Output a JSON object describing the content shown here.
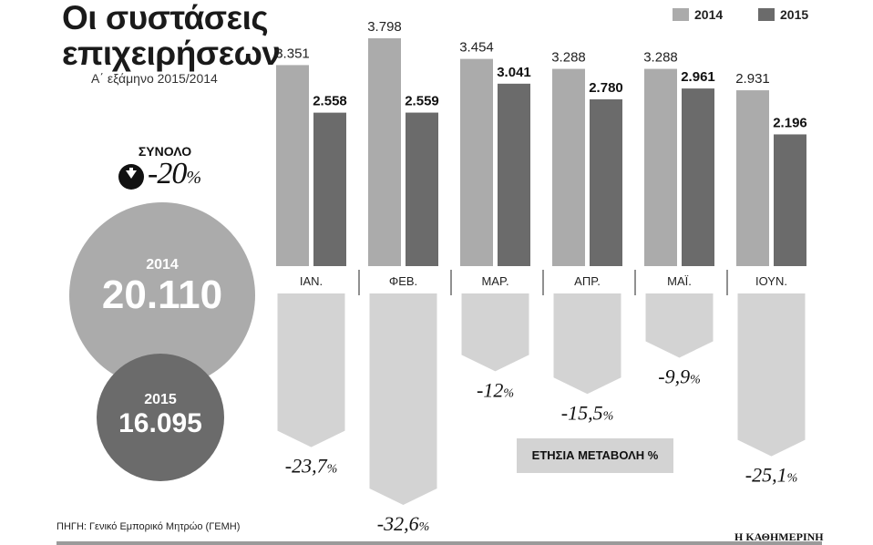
{
  "title": "Οι συστάσεις επιχειρήσεων",
  "subtitle": "Α΄ εξάμηνο 2015/2014",
  "total": {
    "label": "ΣΥΝΟΛΟ",
    "change": "-20",
    "percent_sign": "%",
    "year_a": "2014",
    "value_a": "20.110",
    "year_b": "2015",
    "value_b": "16.095"
  },
  "yoy_box_label": "ΕΤΗΣΙΑ ΜΕΤΑΒΟΛΗ %",
  "source": "ΠΗΓΗ: Γενικό Εμπορικό Μητρώο (ΓΕΜΗ)",
  "brand": "Η ΚΑΘΗΜΕΡΙΝΗ",
  "colors": {
    "series_2014": "#ababab",
    "series_2015": "#6b6b6b",
    "change_arrow": "#d3d3d3",
    "text": "#111111"
  },
  "chart_data": {
    "type": "bar",
    "categories": [
      "ΙΑΝ.",
      "ΦΕΒ.",
      "ΜΑΡ.",
      "ΑΠΡ.",
      "ΜΑΪ.",
      "ΙΟΥΝ."
    ],
    "series": [
      {
        "name": "2014",
        "values": [
          3351,
          3798,
          3454,
          3288,
          3288,
          2931
        ],
        "labels": [
          "3.351",
          "3.798",
          "3.454",
          "3.288",
          "3.288",
          "2.931"
        ]
      },
      {
        "name": "2015",
        "values": [
          2558,
          2559,
          3041,
          2780,
          2961,
          2196
        ],
        "labels": [
          "2.558",
          "2.559",
          "3.041",
          "2.780",
          "2.961",
          "2.196"
        ]
      }
    ],
    "yoy_change": {
      "values": [
        -23.7,
        -32.6,
        -12,
        -15.5,
        -9.9,
        -25.1
      ],
      "labels": [
        "-23,7",
        "-32,6",
        "-12",
        "-15,5",
        "-9,9",
        "-25,1"
      ],
      "unit": "%"
    },
    "legend_position": "top-right",
    "grid": false
  }
}
